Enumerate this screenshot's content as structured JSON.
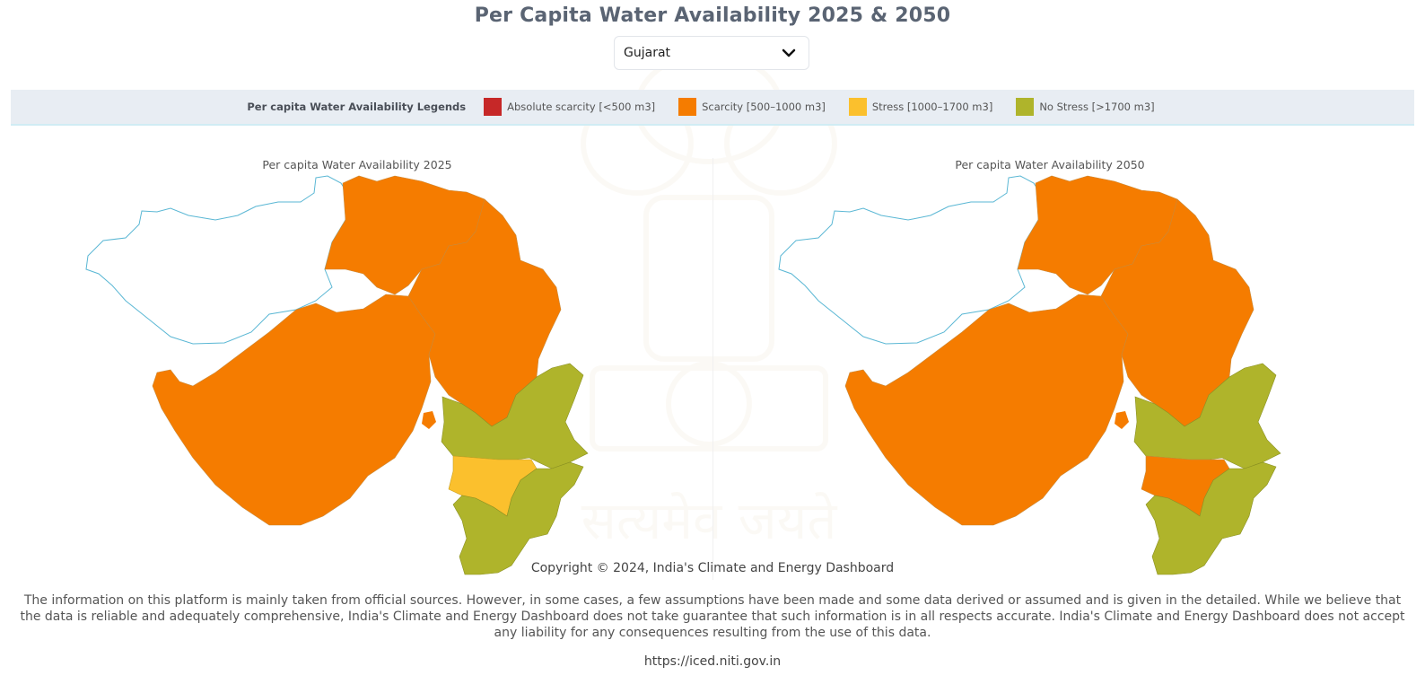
{
  "page": {
    "title": "Per Capita Water Availability 2025 & 2050",
    "state_select": {
      "value": "Gujarat",
      "icon": "chevron-down-icon"
    }
  },
  "legend": {
    "title": "Per capita Water Availability Legends",
    "items": [
      {
        "label": "Absolute scarcity [<500 m3]",
        "color": "#c62828"
      },
      {
        "label": "Scarcity [500–1000 m3]",
        "color": "#f57c00"
      },
      {
        "label": "Stress [1000–1700 m3]",
        "color": "#fbc02d"
      },
      {
        "label": "No Stress [>1700 m3]",
        "color": "#afb42b"
      }
    ]
  },
  "maps": [
    {
      "caption": "Per capita Water Availability 2025",
      "regions": {
        "north_central": "Scarcity",
        "saurashtra": "Scarcity",
        "east_strip": "Scarcity",
        "south_east": "No Stress",
        "south_band": "Stress",
        "far_south": "No Stress"
      }
    },
    {
      "caption": "Per capita Water Availability 2050",
      "regions": {
        "north_central": "Scarcity",
        "saurashtra": "Scarcity",
        "east_strip": "Scarcity",
        "south_east": "No Stress",
        "south_band": "Scarcity",
        "far_south": "No Stress"
      }
    }
  ],
  "footer": {
    "copyright": "Copyright © 2024, India's Climate and Energy Dashboard",
    "disclaimer": "The information on this platform is mainly taken from official sources. However, in some cases, a few assumptions have been made and some data derived or assumed and is given in the detailed. While we believe that the data is reliable and adequately comprehensive, India's Climate and Energy Dashboard does not take guarantee that such information is in all respects accurate. India's Climate and Energy Dashboard does not accept any liability for any consequences resulting from the use of this data.",
    "url": "https://iced.niti.gov.in"
  },
  "colors": {
    "Absolute scarcity": "#c62828",
    "Scarcity": "#f57c00",
    "Stress": "#fbc02d",
    "No Stress": "#afb42b",
    "outline": "#5ab7d4"
  }
}
